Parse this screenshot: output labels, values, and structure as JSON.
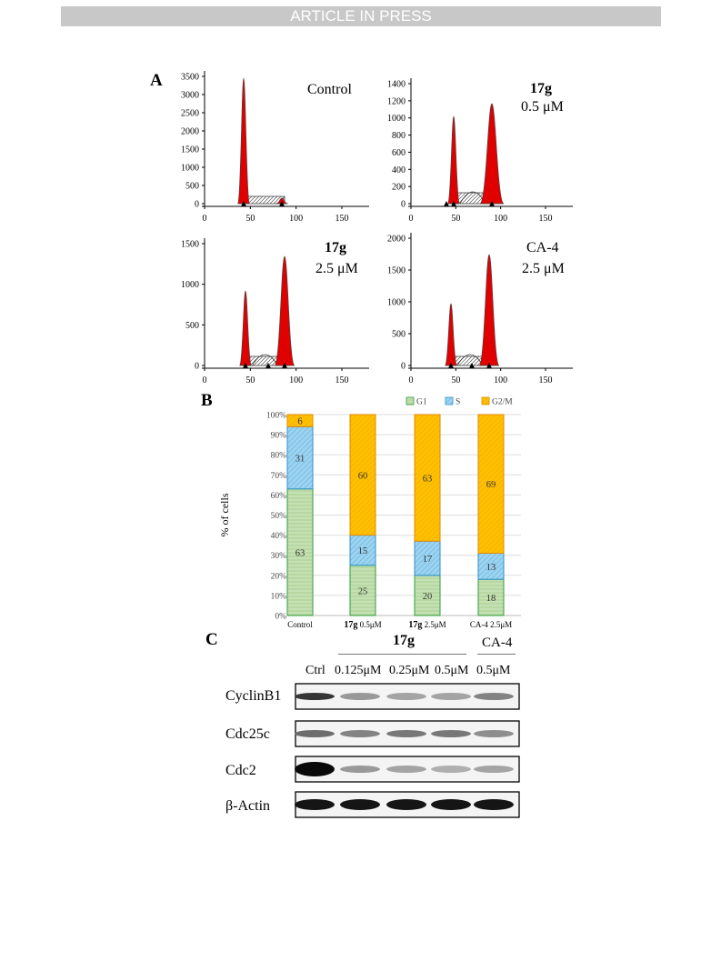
{
  "header": {
    "banner": "ARTICLE IN PRESS"
  },
  "panels": {
    "a": {
      "letter": "A"
    },
    "b": {
      "letter": "B"
    },
    "c": {
      "letter": "C"
    }
  },
  "histograms": [
    {
      "title_bold": "",
      "title": "Control",
      "conc": "",
      "yticks": [
        "3500",
        "3000",
        "2500",
        "2000",
        "1500",
        "1000",
        "500",
        "0"
      ],
      "xticks": [
        "0",
        "50",
        "100",
        "150"
      ]
    },
    {
      "title_bold": "17g",
      "title": "",
      "conc": "0.5 μM",
      "yticks": [
        "1400",
        "1200",
        "1000",
        "800",
        "600",
        "400",
        "200",
        "0"
      ],
      "xticks": [
        "0",
        "50",
        "100",
        "150"
      ]
    },
    {
      "title_bold": "17g",
      "title": "",
      "conc": "2.5 μM",
      "yticks": [
        "1500",
        "1000",
        "500",
        "0"
      ],
      "xticks": [
        "0",
        "50",
        "100",
        "150"
      ]
    },
    {
      "title_bold": "",
      "title": "CA-4",
      "conc": "2.5 μM",
      "yticks": [
        "2000",
        "1500",
        "1000",
        "500",
        "0"
      ],
      "xticks": [
        "0",
        "50",
        "100",
        "150"
      ]
    }
  ],
  "chart_data": {
    "type": "bar",
    "stacked": true,
    "categories": [
      "Control",
      "17g 0.5μM",
      "17g 2.5μM",
      "CA-4 2.5μM"
    ],
    "category_labels": [
      {
        "bold": "",
        "rest": "Control"
      },
      {
        "bold": "17g",
        "rest": " 0.5μM"
      },
      {
        "bold": "17g",
        "rest": " 2.5μM"
      },
      {
        "bold": "",
        "rest": "CA-4 2.5μM"
      }
    ],
    "series": [
      {
        "name": "G1",
        "values": [
          63,
          25,
          20,
          18
        ],
        "color": "#c5e0b4",
        "stroke": "#2e9e3e"
      },
      {
        "name": "S",
        "values": [
          31,
          15,
          17,
          13
        ],
        "color": "#9dd3ef",
        "stroke": "#2f8fca"
      },
      {
        "name": "G2/M",
        "values": [
          6,
          60,
          63,
          69
        ],
        "color": "#ffc000",
        "stroke": "#e08a00"
      }
    ],
    "ylabel": "% of cells",
    "ylim": [
      0,
      100
    ],
    "yticks": [
      "0%",
      "10%",
      "20%",
      "30%",
      "40%",
      "50%",
      "60%",
      "70%",
      "80%",
      "90%",
      "100%"
    ],
    "legend_position": "top-right",
    "grid": true
  },
  "western_blot": {
    "group_17g": "17g",
    "group_ca4": "CA-4",
    "columns": [
      "Ctrl",
      "0.125μM",
      "0.25μM",
      "0.5μM",
      "0.5μM"
    ],
    "rows": [
      "CyclinB1",
      "Cdc25c",
      "Cdc2",
      "β-Actin"
    ]
  }
}
